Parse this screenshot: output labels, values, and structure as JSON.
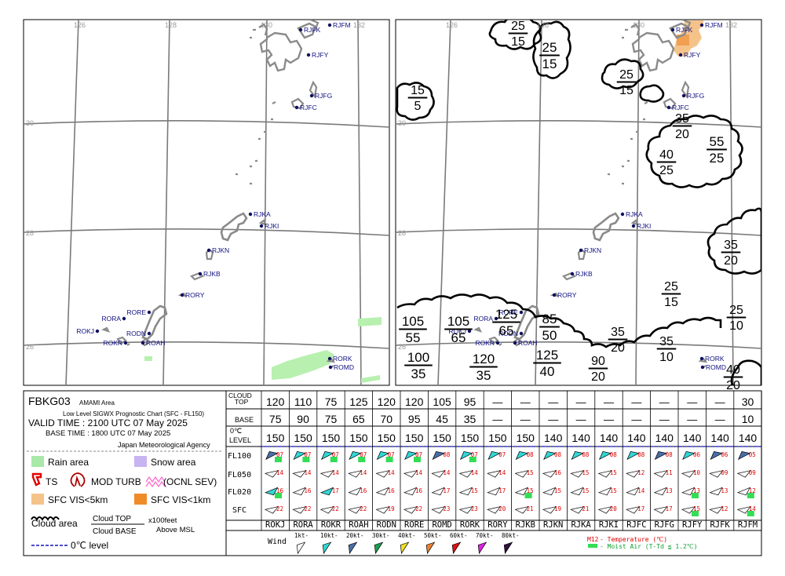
{
  "chart_id": "FBKG03",
  "area": "AMAMI Area",
  "chart_title": "Low Level SIGWX Prognostic Chart (SFC - FL150)",
  "valid_time": "VALID TIME : 2100 UTC 07 May 2025",
  "base_time": "BASE TIME : 1800 UTC 07 May 2025",
  "agency": "Japan Meteorological Agency",
  "map": {
    "lon_labels": [
      "126",
      "128",
      "130",
      "132"
    ],
    "lat_labels": [
      "30",
      "28",
      "26"
    ],
    "stations": [
      {
        "id": "RJFK"
      },
      {
        "id": "RJFM"
      },
      {
        "id": "RJFY"
      },
      {
        "id": "RJFG"
      },
      {
        "id": "RJFC"
      },
      {
        "id": "RJKA"
      },
      {
        "id": "RJKI"
      },
      {
        "id": "RJKN"
      },
      {
        "id": "RJKB"
      },
      {
        "id": "RORY"
      },
      {
        "id": "RORE"
      },
      {
        "id": "RORA"
      },
      {
        "id": "ROKJ"
      },
      {
        "id": "RODN"
      },
      {
        "id": "ROKR"
      },
      {
        "id": "ROAH"
      },
      {
        "id": "RORK"
      },
      {
        "id": "ROMD"
      }
    ],
    "cloud_labels": [
      {
        "top": "25",
        "base": "15"
      },
      {
        "top": "25",
        "base": "15"
      },
      {
        "top": "15",
        "base": "5"
      },
      {
        "top": "25",
        "base": "15"
      },
      {
        "top": "35",
        "base": "20"
      },
      {
        "top": "40",
        "base": "25"
      },
      {
        "top": "55",
        "base": "25"
      },
      {
        "top": "35",
        "base": "20"
      },
      {
        "top": "25",
        "base": "15"
      },
      {
        "top": "25",
        "base": "10"
      },
      {
        "top": "105",
        "base": "55"
      },
      {
        "top": "105",
        "base": "65"
      },
      {
        "top": "125",
        "base": "65"
      },
      {
        "top": "85",
        "base": "50"
      },
      {
        "top": "35",
        "base": "20"
      },
      {
        "top": "35",
        "base": "10"
      },
      {
        "top": "100",
        "base": "35"
      },
      {
        "top": "120",
        "base": "35"
      },
      {
        "top": "125",
        "base": "40"
      },
      {
        "top": "90",
        "base": "20"
      },
      {
        "top": "40",
        "base": "20"
      }
    ]
  },
  "legend": {
    "rain": "Rain area",
    "snow": "Snow area",
    "ts": "TS",
    "mod_turb": "MOD TURB",
    "sev_turb": "(OCNL SEV)",
    "vis5": "SFC VIS<5km",
    "vis1": "SFC VIS<1km",
    "cloud_area": "Cloud area",
    "cloud_top": "Cloud TOP",
    "cloud_base": "Cloud BASE",
    "units": "x100feet",
    "above_msl": "Above MSL",
    "zero_level": "0℃ level",
    "colors": {
      "rain": "#90ee90",
      "snow": "#c8b4f0",
      "vis5": "#f5c38a",
      "vis1": "#f08c28",
      "ts": "#e00000",
      "turb": "#cc0000",
      "sev": "#ff66cc",
      "zero": "#1010c0"
    }
  },
  "table": {
    "row_labels": {
      "cloud_top": "CLOUD TOP",
      "base": "BASE",
      "zero_a": "0℃",
      "zero_b": "LEVEL",
      "fl100": "FL100",
      "fl050": "FL050",
      "fl020": "FL020",
      "sfc": "SFC"
    },
    "columns": [
      {
        "station": "ROKJ",
        "top": "120",
        "base": "75",
        "zero": "150",
        "fl100": "07",
        "fl050": "14",
        "fl020": "16",
        "sfc": "22",
        "fl100_speed": "20",
        "fl050_speed": "1",
        "fl020_speed": "10",
        "sfc_speed": "1",
        "fl100_moist": true,
        "fl050_moist": false,
        "fl020_moist": true,
        "sfc_moist": false
      },
      {
        "station": "RORA",
        "top": "110",
        "base": "90",
        "zero": "150",
        "fl100": "07",
        "fl050": "14",
        "fl020": "16",
        "sfc": "22",
        "fl100_speed": "10",
        "fl050_speed": "1",
        "fl020_speed": "1",
        "sfc_speed": "1",
        "fl100_moist": true,
        "fl050_moist": false,
        "fl020_moist": false,
        "sfc_moist": false
      },
      {
        "station": "ROKR",
        "top": "75",
        "base": "75",
        "zero": "150",
        "fl100": "07",
        "fl050": "14",
        "fl020": "17",
        "sfc": "22",
        "fl100_speed": "10",
        "fl050_speed": "1",
        "fl020_speed": "10",
        "sfc_speed": "1",
        "fl100_moist": true,
        "fl050_moist": false,
        "fl020_moist": false,
        "sfc_moist": false
      },
      {
        "station": "ROAH",
        "top": "125",
        "base": "65",
        "zero": "150",
        "fl100": "07",
        "fl050": "14",
        "fl020": "16",
        "sfc": "22",
        "fl100_speed": "10",
        "fl050_speed": "1",
        "fl020_speed": "1",
        "sfc_speed": "1",
        "fl100_moist": true,
        "fl050_moist": false,
        "fl020_moist": false,
        "sfc_moist": false
      },
      {
        "station": "RODN",
        "top": "120",
        "base": "70",
        "zero": "150",
        "fl100": "07",
        "fl050": "14",
        "fl020": "16",
        "sfc": "19",
        "fl100_speed": "10",
        "fl050_speed": "1",
        "fl020_speed": "1",
        "sfc_speed": "1",
        "fl100_moist": true,
        "fl050_moist": false,
        "fl020_moist": false,
        "sfc_moist": false
      },
      {
        "station": "RORE",
        "top": "120",
        "base": "95",
        "zero": "150",
        "fl100": "07",
        "fl050": "14",
        "fl020": "16",
        "sfc": "22",
        "fl100_speed": "10",
        "fl050_speed": "1",
        "fl020_speed": "1",
        "sfc_speed": "1",
        "fl100_moist": true,
        "fl050_moist": false,
        "fl020_moist": false,
        "sfc_moist": false
      },
      {
        "station": "ROMD",
        "top": "105",
        "base": "45",
        "zero": "150",
        "fl100": "08",
        "fl050": "14",
        "fl020": "17",
        "sfc": "23",
        "fl100_speed": "20",
        "fl050_speed": "1",
        "fl020_speed": "1",
        "sfc_speed": "1",
        "fl100_moist": false,
        "fl050_moist": false,
        "fl020_moist": false,
        "sfc_moist": false
      },
      {
        "station": "RORK",
        "top": "95",
        "base": "35",
        "zero": "150",
        "fl100": "07",
        "fl050": "14",
        "fl020": "15",
        "sfc": "23",
        "fl100_speed": "10",
        "fl050_speed": "1",
        "fl020_speed": "1",
        "sfc_speed": "1",
        "fl100_moist": true,
        "fl050_moist": false,
        "fl020_moist": false,
        "sfc_moist": false
      },
      {
        "station": "RORY",
        "top": "—",
        "base": "—",
        "zero": "150",
        "fl100": "07",
        "fl050": "14",
        "fl020": "17",
        "sfc": "20",
        "fl100_speed": "10",
        "fl050_speed": "1",
        "fl020_speed": "1",
        "sfc_speed": "1",
        "fl100_moist": false,
        "fl050_moist": false,
        "fl020_moist": false,
        "sfc_moist": false
      },
      {
        "station": "RJKB",
        "top": "—",
        "base": "—",
        "zero": "150",
        "fl100": "08",
        "fl050": "15",
        "fl020": "15",
        "sfc": "21",
        "fl100_speed": "10",
        "fl050_speed": "1",
        "fl020_speed": "1",
        "sfc_speed": "1",
        "fl100_moist": false,
        "fl050_moist": false,
        "fl020_moist": true,
        "sfc_moist": false
      },
      {
        "station": "RJKN",
        "top": "—",
        "base": "—",
        "zero": "140",
        "fl100": "08",
        "fl050": "16",
        "fl020": "15",
        "sfc": "19",
        "fl100_speed": "10",
        "fl050_speed": "1",
        "fl020_speed": "1",
        "sfc_speed": "1",
        "fl100_moist": false,
        "fl050_moist": false,
        "fl020_moist": false,
        "sfc_moist": false
      },
      {
        "station": "RJKA",
        "top": "—",
        "base": "—",
        "zero": "140",
        "fl100": "08",
        "fl050": "15",
        "fl020": "15",
        "sfc": "21",
        "fl100_speed": "10",
        "fl050_speed": "1",
        "fl020_speed": "1",
        "sfc_speed": "1",
        "fl100_moist": false,
        "fl050_moist": false,
        "fl020_moist": false,
        "sfc_moist": false
      },
      {
        "station": "RJKI",
        "top": "—",
        "base": "—",
        "zero": "140",
        "fl100": "08",
        "fl050": "15",
        "fl020": "15",
        "sfc": "20",
        "fl100_speed": "10",
        "fl050_speed": "1",
        "fl020_speed": "1",
        "sfc_speed": "1",
        "fl100_moist": false,
        "fl050_moist": false,
        "fl020_moist": false,
        "sfc_moist": false
      },
      {
        "station": "RJFC",
        "top": "—",
        "base": "—",
        "zero": "140",
        "fl100": "08",
        "fl050": "12",
        "fl020": "14",
        "sfc": "17",
        "fl100_speed": "10",
        "fl050_speed": "1",
        "fl020_speed": "1",
        "sfc_speed": "1",
        "fl100_moist": false,
        "fl050_moist": false,
        "fl020_moist": false,
        "sfc_moist": false
      },
      {
        "station": "RJFG",
        "top": "—",
        "base": "—",
        "zero": "140",
        "fl100": "08",
        "fl050": "11",
        "fl020": "13",
        "sfc": "17",
        "fl100_speed": "20",
        "fl050_speed": "1",
        "fl020_speed": "1",
        "sfc_speed": "1",
        "fl100_moist": false,
        "fl050_moist": false,
        "fl020_moist": false,
        "sfc_moist": false
      },
      {
        "station": "RJFY",
        "top": "—",
        "base": "—",
        "zero": "140",
        "fl100": "06",
        "fl050": "10",
        "fl020": "13",
        "sfc": "15",
        "fl100_speed": "10",
        "fl050_speed": "1",
        "fl020_speed": "1",
        "sfc_speed": "1",
        "fl100_moist": false,
        "fl050_moist": false,
        "fl020_moist": true,
        "sfc_moist": true
      },
      {
        "station": "RJFK",
        "top": "—",
        "base": "—",
        "zero": "140",
        "fl100": "06",
        "fl050": "09",
        "fl020": "13",
        "sfc": "12",
        "fl100_speed": "20",
        "fl050_speed": "1",
        "fl020_speed": "1",
        "sfc_speed": "1",
        "fl100_moist": false,
        "fl050_moist": false,
        "fl020_moist": false,
        "sfc_moist": false
      },
      {
        "station": "RJFM",
        "top": "30",
        "base": "10",
        "zero": "140",
        "fl100": "05",
        "fl050": "09",
        "fl020": "12",
        "sfc": "14",
        "fl100_speed": "20",
        "fl050_speed": "1",
        "fl020_speed": "1",
        "sfc_speed": "1",
        "fl100_moist": false,
        "fl050_moist": false,
        "fl020_moist": true,
        "sfc_moist": true
      }
    ],
    "wind_label": "Wind",
    "wind_scale": [
      {
        "label": "1kt-",
        "color": "#ffffff"
      },
      {
        "label": "10kt-",
        "color": "#33d6d6"
      },
      {
        "label": "20kt-",
        "color": "#4a6ea8"
      },
      {
        "label": "30kt-",
        "color": "#1aa050"
      },
      {
        "label": "40kt-",
        "color": "#f0e020"
      },
      {
        "label": "50kt-",
        "color": "#f08030"
      },
      {
        "label": "60kt-",
        "color": "#e01010"
      },
      {
        "label": "70kt-",
        "color": "#e020e0"
      },
      {
        "label": "80kt-",
        "color": "#301040"
      }
    ],
    "temp_sample": "M12",
    "temp_legend": "- Temperature (℃)",
    "moist_legend": "- Moist Air (T-Td ≦ 1.2℃)"
  }
}
